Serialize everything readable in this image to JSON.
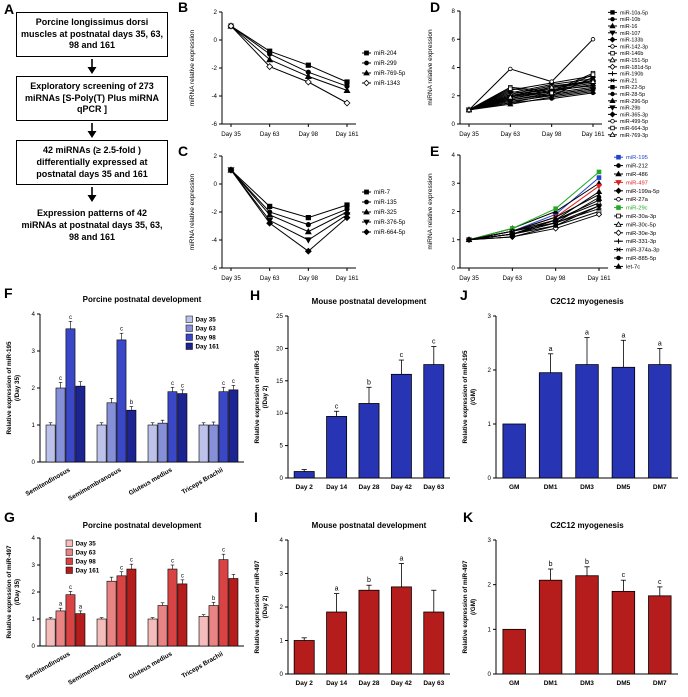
{
  "panel_labels": {
    "A": "A",
    "B": "B",
    "C": "C",
    "D": "D",
    "E": "E",
    "F": "F",
    "G": "G",
    "H": "H",
    "I": "I",
    "J": "J",
    "K": "K"
  },
  "flowchart": {
    "boxes": [
      {
        "text": "Porcine longissimus dorsi muscles at postnatal days 35, 63, 98 and 161"
      },
      {
        "text": "Exploratory screening of 273 miRNAs [S-Poly(T) Plus miRNA qPCR ]"
      },
      {
        "text": "42 miRNAs (≥ 2.5-fold ) differentially expressed at postnatal days 35 and 161"
      },
      {
        "text": "Expression patterns of 42 miRNAs at postnatal days 35, 63, 98 and 161"
      }
    ]
  },
  "chart_data": [
    {
      "id": "B",
      "type": "line",
      "title": "",
      "ylabel": "miRNA relative expression",
      "x": [
        "Day 35",
        "Day 63",
        "Day 98",
        "Day 161"
      ],
      "ylim": [
        -6,
        2
      ],
      "yticks": [
        2,
        0,
        -2,
        -4,
        -6
      ],
      "legend_position": "right",
      "series": [
        {
          "name": "miR-204",
          "marker": "square",
          "color": "#000000",
          "values": [
            1,
            -0.8,
            -1.8,
            -3.0
          ]
        },
        {
          "name": "miR-299",
          "marker": "circle",
          "color": "#000000",
          "values": [
            1,
            -1.0,
            -2.3,
            -3.3
          ]
        },
        {
          "name": "miR-769-5p",
          "marker": "triangle",
          "color": "#000000",
          "values": [
            1,
            -1.4,
            -2.6,
            -3.6
          ]
        },
        {
          "name": "miR-1343",
          "marker": "diamond-open",
          "color": "#000000",
          "values": [
            1,
            -1.9,
            -3.0,
            -4.5
          ]
        }
      ]
    },
    {
      "id": "C",
      "type": "line",
      "title": "",
      "ylabel": "miRNA relative expression",
      "x": [
        "Day 35",
        "Day 63",
        "Day 98",
        "Day 161"
      ],
      "ylim": [
        -6,
        2
      ],
      "yticks": [
        2,
        0,
        -2,
        -4,
        -6
      ],
      "legend_position": "right",
      "series": [
        {
          "name": "miR-7",
          "marker": "square",
          "color": "#000000",
          "values": [
            1,
            -1.6,
            -2.4,
            -1.5
          ]
        },
        {
          "name": "miR-135",
          "marker": "circle",
          "color": "#000000",
          "values": [
            1,
            -2.0,
            -2.9,
            -1.8
          ]
        },
        {
          "name": "miR-325",
          "marker": "triangle",
          "color": "#000000",
          "values": [
            1,
            -2.2,
            -3.4,
            -2.0
          ]
        },
        {
          "name": "miR-376-5p",
          "marker": "triangle-down",
          "color": "#000000",
          "values": [
            1,
            -2.6,
            -4.0,
            -2.2
          ]
        },
        {
          "name": "miR-664-5p",
          "marker": "diamond",
          "color": "#000000",
          "values": [
            1,
            -2.8,
            -4.8,
            -2.4
          ]
        }
      ]
    },
    {
      "id": "D",
      "type": "line",
      "title": "",
      "ylabel": "miRNA relative expression",
      "x": [
        "Day 35",
        "Day 63",
        "Day 98",
        "Day 161"
      ],
      "ylim": [
        0,
        8
      ],
      "yticks": [
        0,
        2,
        4,
        6,
        8
      ],
      "legend_position": "right",
      "series": [
        {
          "name": "miR-10a-5p",
          "marker": "square",
          "color": "#000000",
          "values": [
            1,
            1.5,
            2.1,
            2.5
          ]
        },
        {
          "name": "miR-10b",
          "marker": "circle",
          "color": "#000000",
          "values": [
            1,
            1.8,
            2.4,
            2.9
          ]
        },
        {
          "name": "miR-16",
          "marker": "triangle",
          "color": "#000000",
          "values": [
            1,
            1.4,
            1.9,
            2.3
          ]
        },
        {
          "name": "miR-107",
          "marker": "triangle-down",
          "color": "#000000",
          "values": [
            1,
            1.7,
            2.2,
            2.6
          ]
        },
        {
          "name": "miR-133b",
          "marker": "diamond",
          "color": "#000000",
          "values": [
            1,
            2.0,
            2.6,
            3.1
          ]
        },
        {
          "name": "miR-142-3p",
          "marker": "circle-open",
          "color": "#000000",
          "values": [
            1,
            2.3,
            2.0,
            3.3
          ]
        },
        {
          "name": "miR-146b",
          "marker": "square-open",
          "color": "#000000",
          "values": [
            1,
            2.6,
            2.3,
            3.6
          ]
        },
        {
          "name": "miR-151-5p",
          "marker": "triangle-open",
          "color": "#000000",
          "values": [
            1,
            1.9,
            2.4,
            2.7
          ]
        },
        {
          "name": "miR-181d-5p",
          "marker": "diamond-open",
          "color": "#000000",
          "values": [
            1,
            2.1,
            2.7,
            3.0
          ]
        },
        {
          "name": "miR-190b",
          "marker": "plus",
          "color": "#000000",
          "values": [
            1,
            1.6,
            2.0,
            2.4
          ]
        },
        {
          "name": "miR-21",
          "marker": "cross",
          "color": "#000000",
          "values": [
            1,
            2.4,
            2.9,
            3.4
          ]
        },
        {
          "name": "miR-22-5p",
          "marker": "square",
          "color": "#000000",
          "values": [
            1,
            1.8,
            2.3,
            2.8
          ]
        },
        {
          "name": "miR-28-5p",
          "marker": "circle",
          "color": "#000000",
          "values": [
            1,
            1.5,
            1.8,
            2.2
          ]
        },
        {
          "name": "miR-296-5p",
          "marker": "triangle",
          "color": "#000000",
          "values": [
            1,
            2.0,
            2.5,
            3.0
          ]
        },
        {
          "name": "miR-29b",
          "marker": "triangle-down",
          "color": "#000000",
          "values": [
            1,
            2.2,
            2.8,
            3.2
          ]
        },
        {
          "name": "miR-365-3p",
          "marker": "diamond",
          "color": "#000000",
          "values": [
            1,
            1.7,
            2.1,
            2.5
          ]
        },
        {
          "name": "miR-499-5p",
          "marker": "circle-open",
          "color": "#000000",
          "values": [
            1,
            3.9,
            3.0,
            6.0
          ]
        },
        {
          "name": "miR-664-3p",
          "marker": "square-open",
          "color": "#000000",
          "values": [
            1,
            2.5,
            2.2,
            3.5
          ]
        },
        {
          "name": "miR-769-3p",
          "marker": "triangle-open",
          "color": "#000000",
          "values": [
            1,
            1.9,
            2.6,
            3.0
          ]
        }
      ]
    },
    {
      "id": "E",
      "type": "line",
      "title": "",
      "ylabel": "miRNA relative expression",
      "x": [
        "Day 35",
        "Day 63",
        "Day 98",
        "Day 161"
      ],
      "ylim": [
        0,
        4
      ],
      "yticks": [
        0,
        1,
        2,
        3,
        4
      ],
      "legend_position": "right",
      "series": [
        {
          "name": "miR-195",
          "marker": "square",
          "color": "#2244cc",
          "values": [
            1,
            1.3,
            1.9,
            3.2
          ]
        },
        {
          "name": "miR-212",
          "marker": "circle",
          "color": "#000000",
          "values": [
            1,
            1.2,
            1.6,
            2.5
          ]
        },
        {
          "name": "miR-486",
          "marker": "triangle",
          "color": "#000000",
          "values": [
            1,
            1.4,
            2.0,
            3.0
          ]
        },
        {
          "name": "miR-497",
          "marker": "triangle-down",
          "color": "#dd2222",
          "values": [
            1,
            1.3,
            1.8,
            2.9
          ]
        },
        {
          "name": "miR-199a-5p",
          "marker": "diamond",
          "color": "#000000",
          "values": [
            1,
            1.2,
            1.7,
            2.4
          ]
        },
        {
          "name": "miR-27a",
          "marker": "circle-open",
          "color": "#000000",
          "values": [
            1,
            1.3,
            1.6,
            2.2
          ]
        },
        {
          "name": "miR-29c",
          "marker": "square",
          "color": "#22aa22",
          "values": [
            1,
            1.4,
            2.1,
            3.4
          ]
        },
        {
          "name": "miR-30a-3p",
          "marker": "square-open",
          "color": "#000000",
          "values": [
            1,
            1.2,
            1.5,
            2.0
          ]
        },
        {
          "name": "miR-30c-5p",
          "marker": "triangle-open",
          "color": "#000000",
          "values": [
            1,
            1.3,
            1.7,
            2.3
          ]
        },
        {
          "name": "miR-30e-3p",
          "marker": "diamond-open",
          "color": "#000000",
          "values": [
            1,
            1.1,
            1.4,
            1.9
          ]
        },
        {
          "name": "miR-331-3p",
          "marker": "plus",
          "color": "#000000",
          "values": [
            1,
            1.2,
            1.6,
            2.1
          ]
        },
        {
          "name": "miR-374a-3p",
          "marker": "cross",
          "color": "#000000",
          "values": [
            1,
            1.3,
            1.8,
            2.6
          ]
        },
        {
          "name": "miR-885-5p",
          "marker": "circle",
          "color": "#000000",
          "values": [
            1,
            1.1,
            1.5,
            2.2
          ]
        },
        {
          "name": "let-7c",
          "marker": "triangle",
          "color": "#000000",
          "values": [
            1,
            1.2,
            1.7,
            2.7
          ]
        }
      ]
    },
    {
      "id": "F",
      "type": "grouped_bar",
      "title": "Porcine postnatal development",
      "ylabel": "Relative expression of miR-195",
      "ylabel2": "(/Day 35)",
      "categories": [
        "Semitendinosus",
        "Semimembranosus",
        "Gluteus medius",
        "Triceps Brachii"
      ],
      "ylim": [
        0,
        4
      ],
      "yticks": [
        0,
        1,
        2,
        3,
        4
      ],
      "legend_position": "top-right",
      "series": [
        {
          "name": "Day 35",
          "color": "#bdc2ea",
          "values": [
            1.0,
            1.0,
            1.0,
            1.0
          ],
          "errors": [
            0.06,
            0.06,
            0.06,
            0.06
          ],
          "letters": [
            "",
            "",
            "",
            ""
          ]
        },
        {
          "name": "Day 63",
          "color": "#8690d8",
          "values": [
            2.0,
            1.6,
            1.05,
            1.0
          ],
          "errors": [
            0.15,
            0.12,
            0.08,
            0.08
          ],
          "letters": [
            "c",
            "",
            "",
            ""
          ]
        },
        {
          "name": "Day 98",
          "color": "#3a47c6",
          "values": [
            3.6,
            3.3,
            1.9,
            1.9
          ],
          "errors": [
            0.2,
            0.18,
            0.12,
            0.12
          ],
          "letters": [
            "c",
            "c",
            "c",
            "c"
          ]
        },
        {
          "name": "Day 161",
          "color": "#1c2492",
          "values": [
            2.05,
            1.4,
            1.85,
            1.95
          ],
          "errors": [
            0.12,
            0.1,
            0.1,
            0.12
          ],
          "letters": [
            "",
            "b",
            "c",
            "c"
          ]
        }
      ]
    },
    {
      "id": "G",
      "type": "grouped_bar",
      "title": "Porcine postnatal development",
      "ylabel": "Relative expression of miR-497",
      "ylabel2": "(/Day 35)",
      "categories": [
        "Semitendinosus",
        "Semimembranosus",
        "Gluteus medius",
        "Triceps Brachii"
      ],
      "ylim": [
        0,
        4
      ],
      "yticks": [
        0,
        1,
        2,
        3,
        4
      ],
      "legend_position": "top-left",
      "series": [
        {
          "name": "Day 35",
          "color": "#f5bcbc",
          "values": [
            1.0,
            1.0,
            1.0,
            1.1
          ],
          "errors": [
            0.05,
            0.05,
            0.05,
            0.06
          ],
          "letters": [
            "",
            "",
            "",
            ""
          ]
        },
        {
          "name": "Day 63",
          "color": "#ea8383",
          "values": [
            1.3,
            2.4,
            1.5,
            1.5
          ],
          "errors": [
            0.1,
            0.15,
            0.1,
            0.12
          ],
          "letters": [
            "a",
            "",
            "",
            "b"
          ]
        },
        {
          "name": "Day 98",
          "color": "#da4343",
          "values": [
            1.9,
            2.6,
            2.85,
            3.2
          ],
          "errors": [
            0.12,
            0.15,
            0.15,
            0.2
          ],
          "letters": [
            "c",
            "c",
            "c",
            "c"
          ]
        },
        {
          "name": "Day 161",
          "color": "#b51c1c",
          "values": [
            1.2,
            2.85,
            2.3,
            2.5
          ],
          "errors": [
            0.1,
            0.18,
            0.15,
            0.15
          ],
          "letters": [
            "a",
            "c",
            "c",
            ""
          ]
        }
      ]
    },
    {
      "id": "H",
      "type": "bar",
      "title": "Mouse postnatal development",
      "ylabel": "Relative expression of miR-195",
      "ylabel2": "(/Day 2)",
      "categories": [
        "Day 2",
        "Day 14",
        "Day 28",
        "Day 42",
        "Day 63"
      ],
      "values": [
        1,
        9.5,
        11.5,
        16,
        17.5
      ],
      "errors": [
        0.3,
        0.8,
        2.5,
        2.2,
        2.8
      ],
      "letters": [
        "",
        "c",
        "b",
        "c",
        "c"
      ],
      "color": "#2734b4",
      "ylim": [
        0,
        25
      ],
      "yticks": [
        0,
        5,
        10,
        15,
        20,
        25
      ]
    },
    {
      "id": "I",
      "type": "bar",
      "title": "Mouse postnatal development",
      "ylabel": "Relative expression of miR-497",
      "ylabel2": "(/Day 2)",
      "categories": [
        "Day 2",
        "Day 14",
        "Day 28",
        "Day 42",
        "Day 63"
      ],
      "values": [
        1,
        1.85,
        2.5,
        2.6,
        1.85
      ],
      "errors": [
        0.08,
        0.55,
        0.15,
        0.7,
        0.65
      ],
      "letters": [
        "",
        "a",
        "b",
        "a",
        ""
      ],
      "color": "#b51c1c",
      "ylim": [
        0,
        4
      ],
      "yticks": [
        0,
        1,
        2,
        3,
        4
      ]
    },
    {
      "id": "J",
      "type": "bar",
      "title": "C2C12 myogenesis",
      "ylabel": "Relative expression of miR-195",
      "ylabel2": "(/GM)",
      "categories": [
        "GM",
        "DM1",
        "DM3",
        "DM5",
        "DM7"
      ],
      "values": [
        1,
        1.95,
        2.1,
        2.05,
        2.1
      ],
      "errors": [
        0,
        0.35,
        0.5,
        0.5,
        0.3
      ],
      "letters": [
        "",
        "a",
        "a",
        "a",
        "a"
      ],
      "color": "#2734b4",
      "ylim": [
        0,
        3
      ],
      "yticks": [
        0,
        1,
        2,
        3
      ]
    },
    {
      "id": "K",
      "type": "bar",
      "title": "C2C12 myogenesis",
      "ylabel": "Relative expression of miR-497",
      "ylabel2": "(/GM)",
      "categories": [
        "GM",
        "DM1",
        "DM3",
        "DM5",
        "DM7"
      ],
      "values": [
        1,
        2.1,
        2.2,
        1.85,
        1.75
      ],
      "errors": [
        0,
        0.25,
        0.2,
        0.25,
        0.2
      ],
      "letters": [
        "",
        "b",
        "b",
        "c",
        "c"
      ],
      "color": "#b51c1c",
      "ylim": [
        0,
        3
      ],
      "yticks": [
        0,
        1,
        2,
        3
      ]
    }
  ]
}
